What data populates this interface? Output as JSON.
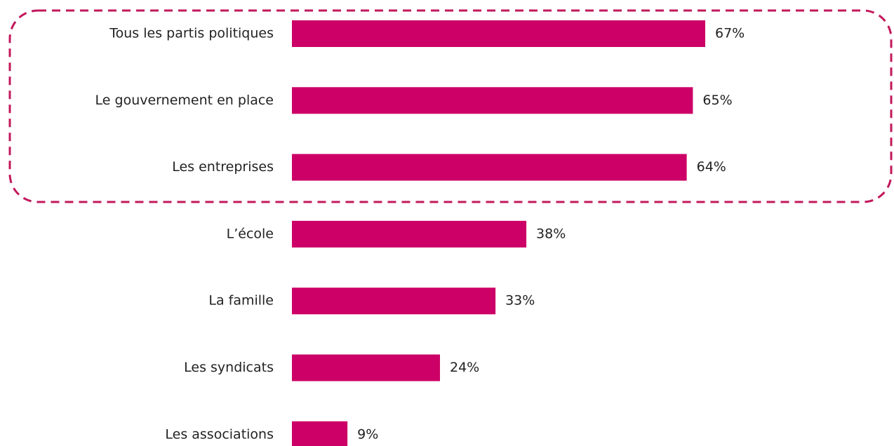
{
  "chart_data": {
    "type": "bar",
    "orientation": "horizontal",
    "categories": [
      "Tous les partis politiques",
      "Le gouvernement en place",
      "Les entreprises",
      "L’école",
      "La famille",
      "Les syndicats",
      "Les associations"
    ],
    "values": [
      67,
      65,
      64,
      38,
      33,
      24,
      9
    ],
    "value_labels": [
      "67%",
      "65%",
      "64%",
      "38%",
      "33%",
      "24%",
      "9%"
    ],
    "color": "#cc0066"
  }
}
